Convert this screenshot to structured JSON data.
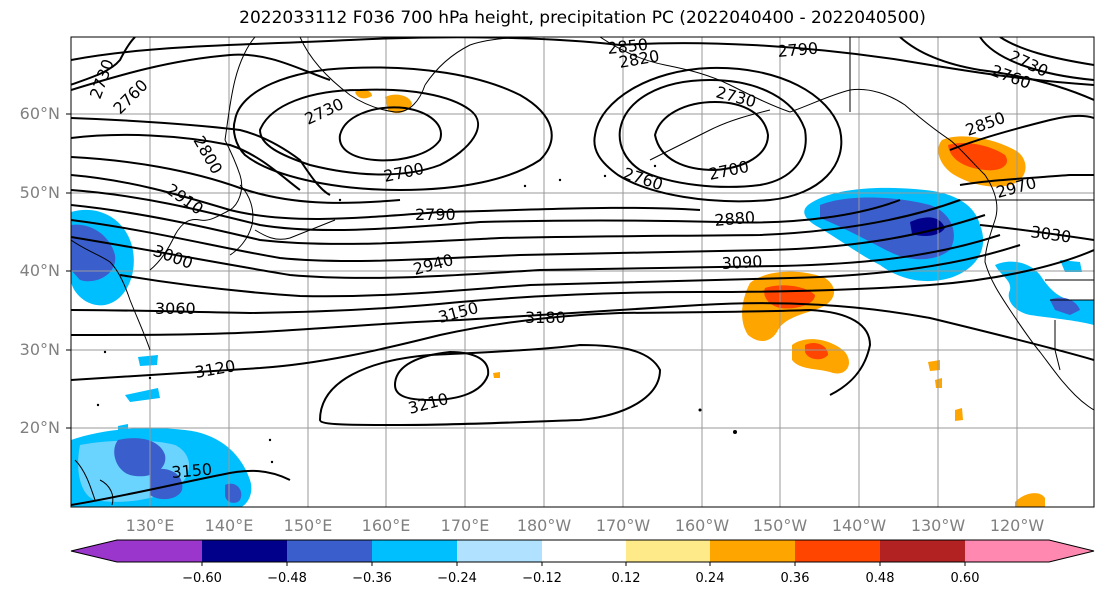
{
  "title": "2022033112 F036 700 hPa height, precipitation PC (2022040400 - 2022040500)",
  "lat_labels": [
    "60°N",
    "50°N",
    "40°N",
    "30°N",
    "20°N"
  ],
  "lon_labels": [
    "130°E",
    "140°E",
    "150°E",
    "160°E",
    "170°E",
    "180°W",
    "170°W",
    "160°W",
    "150°W",
    "140°W",
    "130°W",
    "120°W"
  ],
  "colorbar": {
    "ticks": [
      "−0.60",
      "−0.48",
      "−0.36",
      "−0.24",
      "−0.12",
      "0.12",
      "0.24",
      "0.36",
      "0.48",
      "0.60"
    ],
    "colors": [
      "#9a36cc",
      "#00008b",
      "#3a5fcd",
      "#00bfff",
      "#b0e2ff",
      "#ffffff",
      "#ffea8a",
      "#ffa500",
      "#ff4500",
      "#b22222",
      "#ff88b0"
    ]
  },
  "contour_labels": [
    "2850",
    "2820",
    "2790",
    "2700",
    "2730",
    "2760",
    "2730",
    "2760",
    "2730",
    "2760",
    "2800",
    "2700",
    "2730",
    "2850",
    "2970",
    "2910",
    "2790",
    "2880",
    "3030",
    "3000",
    "2940",
    "3090",
    "3060",
    "3150",
    "3180",
    "3120",
    "3210",
    "3150"
  ]
}
